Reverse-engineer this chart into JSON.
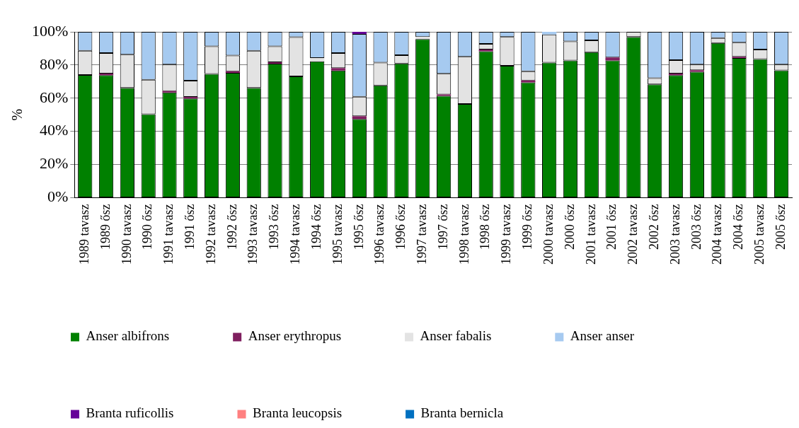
{
  "chart_data": {
    "type": "bar",
    "stacked": true,
    "ylabel": "%",
    "categories": [
      "1989 tavasz",
      "1989 ősz",
      "1990 tavasz",
      "1990 ősz",
      "1991 tavasz",
      "1991 ősz",
      "1992 tavasz",
      "1992 ősz",
      "1993 tavasz",
      "1993 ősz",
      "1994 tavasz",
      "1994 ősz",
      "1995 tavasz",
      "1995 ősz",
      "1996 tavasz",
      "1996 ősz",
      "1997 tavasz",
      "1997 ősz",
      "1998 tavasz",
      "1998 ősz",
      "1999 tavasz",
      "1999 ősz",
      "2000 tavasz",
      "2000 ősz",
      "2001 tavasz",
      "2001 ősz",
      "2002 tavasz",
      "2002 ősz",
      "2003 tavasz",
      "2003 ősz",
      "2004 tavasz",
      "2004 ősz",
      "2005 tavasz",
      "2005 ősz"
    ],
    "series": [
      {
        "name": "Anser albifrons",
        "color": "#008000",
        "values": [
          74,
          73.9,
          66.2,
          50.3,
          63.4,
          59.8,
          74.6,
          75.3,
          66.2,
          80.8,
          73.1,
          82.2,
          76.7,
          47.5,
          67.7,
          80.9,
          95.6,
          61.4,
          56.5,
          88.3,
          79.5,
          69.5,
          81.5,
          82.7,
          87.7,
          82.7,
          96.9,
          68.3,
          73.9,
          75.9,
          93.3,
          84.2,
          83.6,
          76.8
        ]
      },
      {
        "name": "Anser erythropus",
        "color": "#7f1f5f",
        "values": [
          0,
          0.9,
          0,
          0,
          0.9,
          1,
          0,
          0.9,
          0,
          0.9,
          0,
          0,
          1.4,
          1.6,
          0,
          0,
          0,
          0.9,
          0,
          1,
          0,
          1.2,
          0,
          0,
          0,
          1.8,
          0,
          0,
          0.9,
          1,
          0,
          0.8,
          0,
          0
        ]
      },
      {
        "name": "Anser fabalis",
        "color": "#e3e3e3",
        "values": [
          14.6,
          12.4,
          20.1,
          20.8,
          16,
          9.8,
          16.7,
          9.5,
          22.4,
          9.6,
          23.7,
          2,
          9.1,
          11.8,
          13.8,
          5,
          1.3,
          12.4,
          28.5,
          3.4,
          17.4,
          5.5,
          16.9,
          11.5,
          7.2,
          0,
          3.1,
          3.8,
          8.1,
          3.4,
          3,
          8.5,
          5.7,
          3.5
        ]
      },
      {
        "name": "Anser anser",
        "color": "#a6caf0",
        "values": [
          11.4,
          12.8,
          13.7,
          28.9,
          19.7,
          29.4,
          8.7,
          14.3,
          11.4,
          8.7,
          3.2,
          15.8,
          12.8,
          37.8,
          18.5,
          14.1,
          3.1,
          25.3,
          15,
          7.3,
          3.1,
          23.8,
          1.6,
          5.8,
          5.1,
          15.5,
          0,
          27.9,
          17.1,
          19.7,
          3.7,
          6.5,
          10.7,
          19.7
        ]
      },
      {
        "name": "Branta ruficollis",
        "color": "#660099",
        "values": [
          0,
          0,
          0,
          0,
          0,
          0,
          0,
          0,
          0,
          0,
          0,
          0,
          0,
          1.3,
          0,
          0,
          0,
          0,
          0,
          0,
          0,
          0,
          0,
          0,
          0,
          0,
          0,
          0,
          0,
          0,
          0,
          0,
          0,
          0
        ]
      },
      {
        "name": "Branta leucopsis",
        "color": "#ff8080",
        "values": [
          0,
          0,
          0,
          0,
          0,
          0,
          0,
          0,
          0,
          0,
          0,
          0,
          0,
          0,
          0,
          0,
          0,
          0,
          0,
          0,
          0,
          0,
          0,
          0,
          0,
          0,
          0,
          0,
          0,
          0,
          0,
          0,
          0,
          0
        ]
      },
      {
        "name": "Branta bernicla",
        "color": "#0070c0",
        "values": [
          0,
          0,
          0,
          0,
          0,
          0,
          0,
          0,
          0,
          0,
          0,
          0,
          0,
          0,
          0,
          0,
          0,
          0,
          0,
          0,
          0,
          0,
          0,
          0,
          0,
          0,
          0,
          0,
          0,
          0,
          0,
          0,
          0,
          0
        ]
      }
    ],
    "ylim": [
      0,
      100
    ],
    "yticks": [
      {
        "value": 0,
        "label": "0%"
      },
      {
        "value": 20,
        "label": "20%"
      },
      {
        "value": 40,
        "label": "40%"
      },
      {
        "value": 60,
        "label": "60%"
      },
      {
        "value": 80,
        "label": "80%"
      },
      {
        "value": 100,
        "label": "100%"
      }
    ],
    "grid": "y",
    "legend": "bottom"
  }
}
